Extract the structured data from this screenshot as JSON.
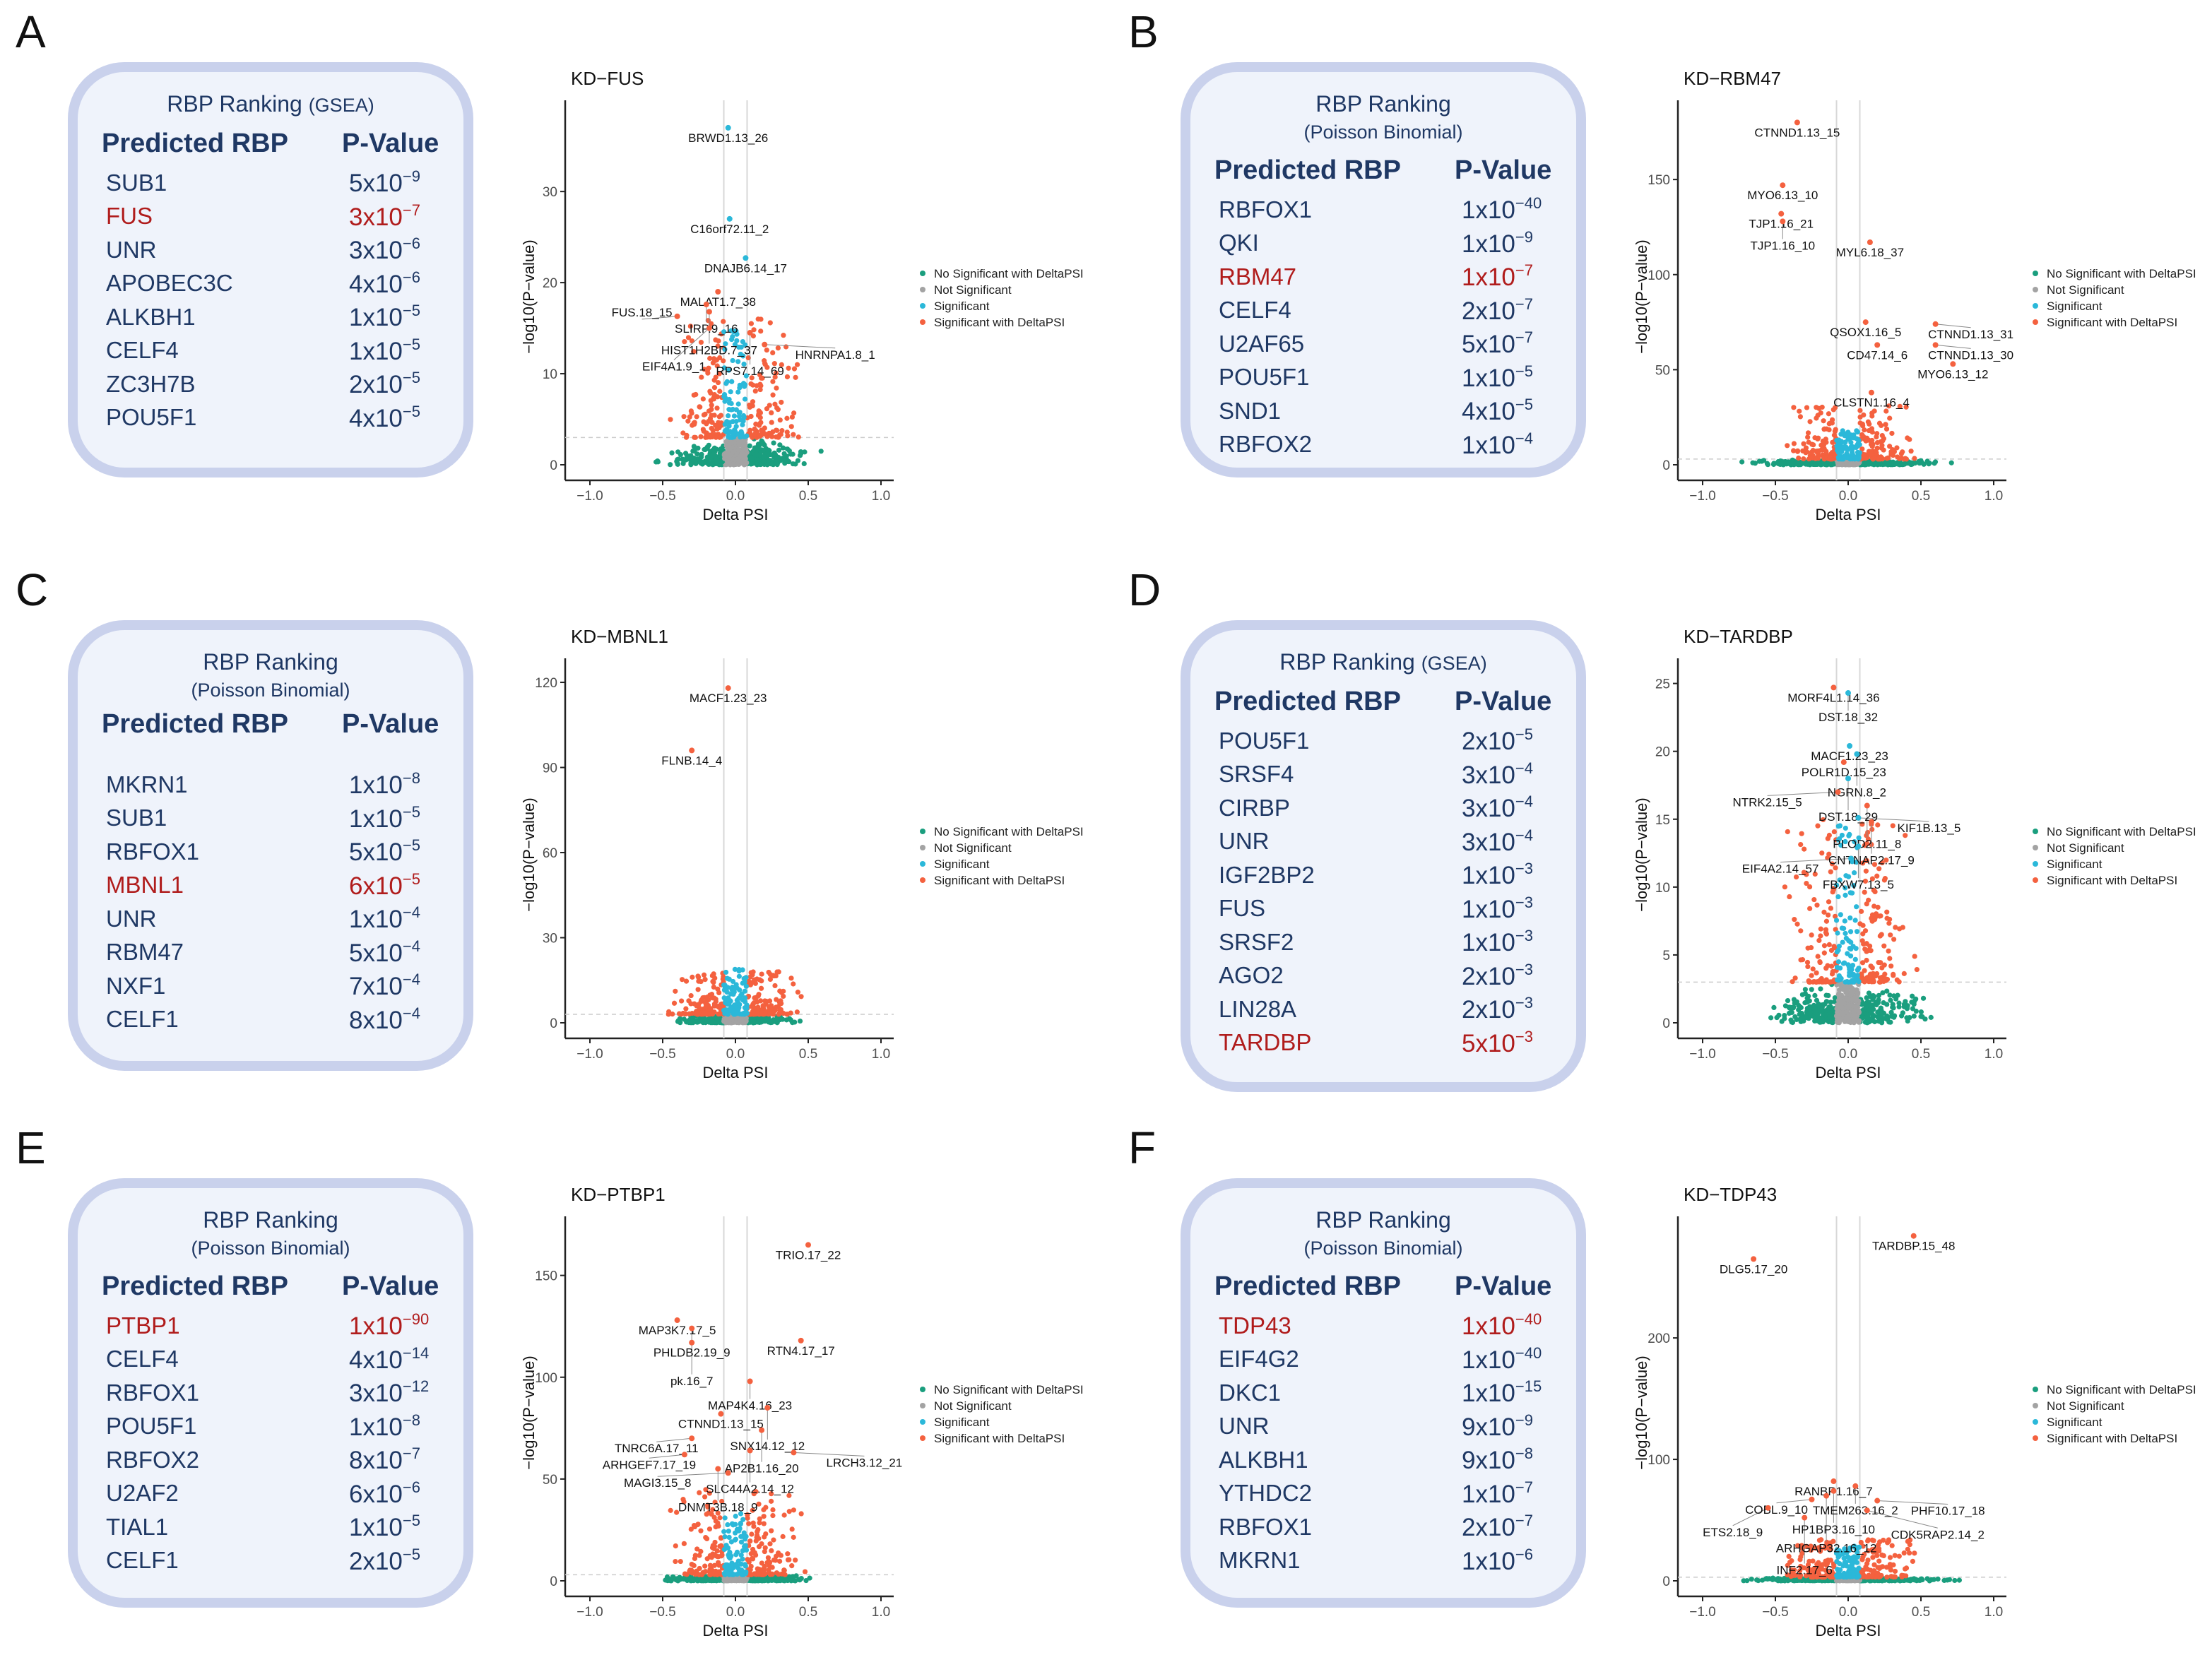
{
  "legend": {
    "entries": [
      {
        "label": "No Significant with DeltaPSI",
        "color": "#1a9e7e"
      },
      {
        "label": "Not Significant",
        "color": "#a3a3a3"
      },
      {
        "label": "Significant",
        "color": "#2bb8d9"
      },
      {
        "label": "Significant with DeltaPSI",
        "color": "#f4613f"
      }
    ]
  },
  "colors": {
    "table_text": "#1f3864",
    "highlight": "#b01c1c",
    "box_border": "#c9d1ec",
    "box_fill": "#eff3fb"
  },
  "panels": [
    {
      "letter": "A",
      "table": {
        "title": "RBP Ranking",
        "method": "(GSEA)",
        "method_inline": true,
        "col1": "Predicted RBP",
        "col2": "P-Value",
        "rows": [
          {
            "rbp": "SUB1",
            "mant": "5x10",
            "exp": "−9"
          },
          {
            "rbp": "FUS",
            "mant": "3x10",
            "exp": "−7",
            "highlight": true
          },
          {
            "rbp": "UNR",
            "mant": "3x10",
            "exp": "−6"
          },
          {
            "rbp": "APOBEC3C",
            "mant": "4x10",
            "exp": "−6"
          },
          {
            "rbp": "ALKBH1",
            "mant": "1x10",
            "exp": "−5"
          },
          {
            "rbp": "CELF4",
            "mant": "1x10",
            "exp": "−5"
          },
          {
            "rbp": "ZC3H7B",
            "mant": "2x10",
            "exp": "−5"
          },
          {
            "rbp": "POU5F1",
            "mant": "4x10",
            "exp": "−5"
          }
        ]
      }
    },
    {
      "letter": "B",
      "table": {
        "title": "RBP Ranking",
        "method": "(Poisson Binomial)",
        "method_inline": false,
        "col1": "Predicted RBP",
        "col2": "P-Value",
        "rows": [
          {
            "rbp": "RBFOX1",
            "mant": "1x10",
            "exp": "−40"
          },
          {
            "rbp": "QKI",
            "mant": "1x10",
            "exp": "−9"
          },
          {
            "rbp": "RBM47",
            "mant": "1x10",
            "exp": "−7",
            "highlight": true
          },
          {
            "rbp": "CELF4",
            "mant": "2x10",
            "exp": "−7"
          },
          {
            "rbp": "U2AF65",
            "mant": "5x10",
            "exp": "−7"
          },
          {
            "rbp": "POU5F1",
            "mant": "1x10",
            "exp": "−5"
          },
          {
            "rbp": "SND1",
            "mant": "4x10",
            "exp": "−5"
          },
          {
            "rbp": "RBFOX2",
            "mant": "1x10",
            "exp": "−4"
          }
        ]
      }
    },
    {
      "letter": "C",
      "table": {
        "title": "RBP Ranking",
        "method": "(Poisson Binomial)",
        "method_inline": false,
        "col1": "Predicted RBP",
        "col2": "P-Value",
        "rows": [
          {
            "rbp": "MKRN1",
            "mant": "1x10",
            "exp": "−8"
          },
          {
            "rbp": "SUB1",
            "mant": "1x10",
            "exp": "−5"
          },
          {
            "rbp": "RBFOX1",
            "mant": "5x10",
            "exp": "−5"
          },
          {
            "rbp": "MBNL1",
            "mant": "6x10",
            "exp": "−5",
            "highlight": true
          },
          {
            "rbp": "UNR",
            "mant": "1x10",
            "exp": "−4"
          },
          {
            "rbp": "RBM47",
            "mant": "5x10",
            "exp": "−4"
          },
          {
            "rbp": "NXF1",
            "mant": "7x10",
            "exp": "−4"
          },
          {
            "rbp": "CELF1",
            "mant": "8x10",
            "exp": "−4"
          }
        ]
      }
    },
    {
      "letter": "D",
      "table": {
        "title": "RBP Ranking",
        "method": "(GSEA)",
        "method_inline": true,
        "col1": "Predicted RBP",
        "col2": "P-Value",
        "rows": [
          {
            "rbp": "POU5F1",
            "mant": "2x10",
            "exp": "−5"
          },
          {
            "rbp": "SRSF4",
            "mant": "3x10",
            "exp": "−4"
          },
          {
            "rbp": "CIRBP",
            "mant": "3x10",
            "exp": "−4"
          },
          {
            "rbp": "UNR",
            "mant": "3x10",
            "exp": "−4"
          },
          {
            "rbp": "IGF2BP2",
            "mant": "1x10",
            "exp": "−3"
          },
          {
            "rbp": "FUS",
            "mant": "1x10",
            "exp": "−3"
          },
          {
            "rbp": "SRSF2",
            "mant": "1x10",
            "exp": "−3"
          },
          {
            "rbp": "AGO2",
            "mant": "2x10",
            "exp": "−3"
          },
          {
            "rbp": "LIN28A",
            "mant": "2x10",
            "exp": "−3"
          },
          {
            "rbp": "TARDBP",
            "mant": "5x10",
            "exp": "−3",
            "highlight": true
          }
        ]
      }
    },
    {
      "letter": "E",
      "table": {
        "title": "RBP Ranking",
        "method": "(Poisson Binomial)",
        "method_inline": false,
        "col1": "Predicted RBP",
        "col2": "P-Value",
        "rows": [
          {
            "rbp": "PTBP1",
            "mant": "1x10",
            "exp": "−90",
            "highlight": true
          },
          {
            "rbp": "CELF4",
            "mant": "4x10",
            "exp": "−14"
          },
          {
            "rbp": "RBFOX1",
            "mant": "3x10",
            "exp": "−12"
          },
          {
            "rbp": "POU5F1",
            "mant": "1x10",
            "exp": "−8"
          },
          {
            "rbp": "RBFOX2",
            "mant": "8x10",
            "exp": "−7"
          },
          {
            "rbp": "U2AF2",
            "mant": "6x10",
            "exp": "−6"
          },
          {
            "rbp": "TIAL1",
            "mant": "1x10",
            "exp": "−5"
          },
          {
            "rbp": "CELF1",
            "mant": "2x10",
            "exp": "−5"
          }
        ]
      }
    },
    {
      "letter": "F",
      "table": {
        "title": "RBP Ranking",
        "method": "(Poisson Binomial)",
        "method_inline": false,
        "col1": "Predicted RBP",
        "col2": "P-Value",
        "rows": [
          {
            "rbp": "TDP43",
            "mant": "1x10",
            "exp": "−40",
            "highlight": true
          },
          {
            "rbp": "EIF4G2",
            "mant": "1x10",
            "exp": "−40"
          },
          {
            "rbp": "DKC1",
            "mant": "1x10",
            "exp": "−15"
          },
          {
            "rbp": "UNR",
            "mant": "9x10",
            "exp": "−9"
          },
          {
            "rbp": "ALKBH1",
            "mant": "9x10",
            "exp": "−8"
          },
          {
            "rbp": "YTHDC2",
            "mant": "1x10",
            "exp": "−7"
          },
          {
            "rbp": "RBFOX1",
            "mant": "2x10",
            "exp": "−7"
          },
          {
            "rbp": "MKRN1",
            "mant": "1x10",
            "exp": "−6"
          }
        ]
      }
    }
  ],
  "chart_data": [
    {
      "type": "scatter",
      "title": "KD−FUS",
      "xlabel": "Delta PSI",
      "ylabel": "−log10(P−value)",
      "xlim": [
        -1.1,
        1.1
      ],
      "ylim": [
        0,
        38
      ],
      "xticks": [
        "−1.0",
        "−0.5",
        "0.0",
        "0.5",
        "1.0"
      ],
      "yticks": [
        0,
        10,
        20,
        30
      ],
      "grid": false,
      "legend": "right",
      "labeled_points": [
        {
          "label": "BRWD1.13_26",
          "x": -0.05,
          "y": 37,
          "cls": 2
        },
        {
          "label": "C16orf72.11_2",
          "x": -0.04,
          "y": 27,
          "cls": 2
        },
        {
          "label": "DNAJB6.14_17",
          "x": 0.07,
          "y": 22.7,
          "cls": 2
        },
        {
          "label": "MALAT1.7_38",
          "x": -0.12,
          "y": 19,
          "cls": 3
        },
        {
          "label": "SLIRP.9_16",
          "x": -0.2,
          "y": 17.6,
          "cls": 3
        },
        {
          "label": "HIST1H2BD.7_37",
          "x": -0.18,
          "y": 16.8,
          "cls": 3
        },
        {
          "label": "FUS.18_15",
          "x": -0.4,
          "y": 16.3,
          "cls": 3
        },
        {
          "label": "RPS7.14_69",
          "x": 0.1,
          "y": 14.5,
          "cls": 3
        },
        {
          "label": "EIF4A1.9_1",
          "x": -0.18,
          "y": 15,
          "cls": 3
        },
        {
          "label": "HNRNPA1.8_1",
          "x": 0.2,
          "y": 13.2,
          "cls": 3
        }
      ]
    },
    {
      "type": "scatter",
      "title": "KD−RBM47",
      "xlabel": "Delta PSI",
      "ylabel": "−log10(P−value)",
      "xlim": [
        -1.1,
        1.1
      ],
      "ylim": [
        0,
        182
      ],
      "xticks": [
        "−1.0",
        "−0.5",
        "0.0",
        "0.5",
        "1.0"
      ],
      "yticks": [
        0,
        50,
        100,
        150
      ],
      "grid": false,
      "legend": "right",
      "labeled_points": [
        {
          "label": "CTNND1.13_15",
          "x": -0.35,
          "y": 180,
          "cls": 3
        },
        {
          "label": "MYO6.13_10",
          "x": -0.45,
          "y": 147,
          "cls": 3
        },
        {
          "label": "TJP1.16_21",
          "x": -0.46,
          "y": 132,
          "cls": 3
        },
        {
          "label": "TJP1.16_10",
          "x": -0.45,
          "y": 128,
          "cls": 3
        },
        {
          "label": "MYL6.18_37",
          "x": 0.15,
          "y": 117,
          "cls": 3
        },
        {
          "label": "QSOX1.16_5",
          "x": 0.12,
          "y": 75,
          "cls": 3
        },
        {
          "label": "CD47.14_6",
          "x": 0.2,
          "y": 63,
          "cls": 3
        },
        {
          "label": "CTNND1.13_31",
          "x": 0.6,
          "y": 74,
          "cls": 3
        },
        {
          "label": "CTNND1.13_30",
          "x": 0.6,
          "y": 63,
          "cls": 3
        },
        {
          "label": "MYO6.13_12",
          "x": 0.72,
          "y": 53,
          "cls": 3
        },
        {
          "label": "CLSTN1.16_4",
          "x": 0.16,
          "y": 38,
          "cls": 3
        }
      ]
    },
    {
      "type": "scatter",
      "title": "KD−MBNL1",
      "xlabel": "Delta PSI",
      "ylabel": "−log10(P−value)",
      "xlim": [
        -1.1,
        1.1
      ],
      "ylim": [
        0,
        122
      ],
      "xticks": [
        "−1.0",
        "−0.5",
        "0.0",
        "0.5",
        "1.0"
      ],
      "yticks": [
        0,
        30,
        60,
        90,
        120
      ],
      "grid": false,
      "legend": "right",
      "labeled_points": [
        {
          "label": "MACF1.23_23",
          "x": -0.05,
          "y": 118,
          "cls": 3
        },
        {
          "label": "FLNB.14_4",
          "x": -0.3,
          "y": 96,
          "cls": 3
        }
      ]
    },
    {
      "type": "scatter",
      "title": "KD−TARDBP",
      "xlabel": "Delta PSI",
      "ylabel": "−log10(P−value)",
      "xlim": [
        -1.1,
        1.1
      ],
      "ylim": [
        0,
        25.5
      ],
      "xticks": [
        "−1.0",
        "−0.5",
        "0.0",
        "0.5",
        "1.0"
      ],
      "yticks": [
        0,
        5,
        10,
        15,
        20,
        25
      ],
      "grid": false,
      "legend": "right",
      "labeled_points": [
        {
          "label": "MORF4L1.14_36",
          "x": -0.1,
          "y": 24.7,
          "cls": 3
        },
        {
          "label": "DST.18_32",
          "x": 0.0,
          "y": 24.3,
          "cls": 2
        },
        {
          "label": "MACF1.23_23",
          "x": 0.01,
          "y": 20.4,
          "cls": 2
        },
        {
          "label": "POLR1D.15_23",
          "x": -0.03,
          "y": 19.2,
          "cls": 3
        },
        {
          "label": "NGRN.8_2",
          "x": 0.06,
          "y": 19.8,
          "cls": 2
        },
        {
          "label": "DST.18_29",
          "x": 0.0,
          "y": 18,
          "cls": 2
        },
        {
          "label": "NTRK2.15_5",
          "x": -0.07,
          "y": 17,
          "cls": 3
        },
        {
          "label": "PLOD2.11_8",
          "x": 0.13,
          "y": 16,
          "cls": 3
        },
        {
          "label": "KIF1B.13_5",
          "x": 0.07,
          "y": 15.1,
          "cls": 2
        },
        {
          "label": "CNTNAP2.17_9",
          "x": 0.16,
          "y": 14.8,
          "cls": 3
        },
        {
          "label": "FBXW7.13_5",
          "x": 0.07,
          "y": 13,
          "cls": 2
        },
        {
          "label": "EIF4A2.14_57",
          "x": 0.02,
          "y": 12.1,
          "cls": 2
        }
      ]
    },
    {
      "type": "scatter",
      "title": "KD−PTBP1",
      "xlabel": "Delta PSI",
      "ylabel": "−log10(P−value)",
      "xlim": [
        -1.1,
        1.1
      ],
      "ylim": [
        0,
        170
      ],
      "xticks": [
        "−1.0",
        "−0.5",
        "0.0",
        "0.5",
        "1.0"
      ],
      "yticks": [
        0,
        50,
        100,
        150
      ],
      "grid": false,
      "legend": "right",
      "labeled_points": [
        {
          "label": "TRIO.17_22",
          "x": 0.5,
          "y": 165,
          "cls": 3
        },
        {
          "label": "MAP3K7.17_5",
          "x": -0.4,
          "y": 128,
          "cls": 3
        },
        {
          "label": "PHLDB2.19_9",
          "x": -0.3,
          "y": 124,
          "cls": 3
        },
        {
          "label": "pk.16_7",
          "x": -0.3,
          "y": 117,
          "cls": 3
        },
        {
          "label": "RTN4.17_17",
          "x": 0.45,
          "y": 118,
          "cls": 3
        },
        {
          "label": "MAP4K4.16_23",
          "x": 0.1,
          "y": 98,
          "cls": 3
        },
        {
          "label": "CTNND1.13_15",
          "x": -0.1,
          "y": 82,
          "cls": 3
        },
        {
          "label": "SNX14.12_12",
          "x": 0.22,
          "y": 85,
          "cls": 3
        },
        {
          "label": "AP2B1.16_20",
          "x": 0.18,
          "y": 74,
          "cls": 3
        },
        {
          "label": "TNRC6A.17_11",
          "x": -0.3,
          "y": 70,
          "cls": 3
        },
        {
          "label": "SLC44A2.14_12",
          "x": 0.1,
          "y": 64,
          "cls": 3
        },
        {
          "label": "LRCH3.12_21",
          "x": 0.4,
          "y": 63,
          "cls": 3
        },
        {
          "label": "ARHGEF7.17_19",
          "x": -0.35,
          "y": 62,
          "cls": 3
        },
        {
          "label": "DNMT3B.18_9",
          "x": -0.12,
          "y": 55,
          "cls": 3
        },
        {
          "label": "MAGI3.15_8",
          "x": -0.05,
          "y": 53,
          "cls": 3
        }
      ]
    },
    {
      "type": "scatter",
      "title": "KD−TDP43",
      "xlabel": "Delta PSI",
      "ylabel": "−log10(P−value)",
      "xlim": [
        -1.1,
        1.1
      ],
      "ylim": [
        0,
        285
      ],
      "xticks": [
        "−1.0",
        "−0.5",
        "0.0",
        "0.5",
        "1.0"
      ],
      "yticks": [
        0,
        100,
        200
      ],
      "grid": false,
      "legend": "right",
      "labeled_points": [
        {
          "label": "DLG5.17_20",
          "x": -0.65,
          "y": 265,
          "cls": 3
        },
        {
          "label": "TARDBP.15_48",
          "x": 0.45,
          "y": 284,
          "cls": 3
        },
        {
          "label": "RANBP1.16_7",
          "x": -0.1,
          "y": 82,
          "cls": 3
        },
        {
          "label": "TMEM263.16_2",
          "x": 0.05,
          "y": 78,
          "cls": 3
        },
        {
          "label": "HP1BP3.16_10",
          "x": -0.1,
          "y": 74,
          "cls": 3
        },
        {
          "label": "ARHGAP32.16_12",
          "x": -0.15,
          "y": 70,
          "cls": 3
        },
        {
          "label": "COBL.9_10",
          "x": -0.25,
          "y": 67,
          "cls": 3
        },
        {
          "label": "PHF10.17_18",
          "x": 0.2,
          "y": 66,
          "cls": 3
        },
        {
          "label": "ETS2.18_9",
          "x": -0.55,
          "y": 60,
          "cls": 3
        },
        {
          "label": "CDK5RAP2.14_2",
          "x": 0.13,
          "y": 58,
          "cls": 3
        },
        {
          "label": "INF2.17_6",
          "x": -0.3,
          "y": 52,
          "cls": 3
        }
      ]
    }
  ]
}
